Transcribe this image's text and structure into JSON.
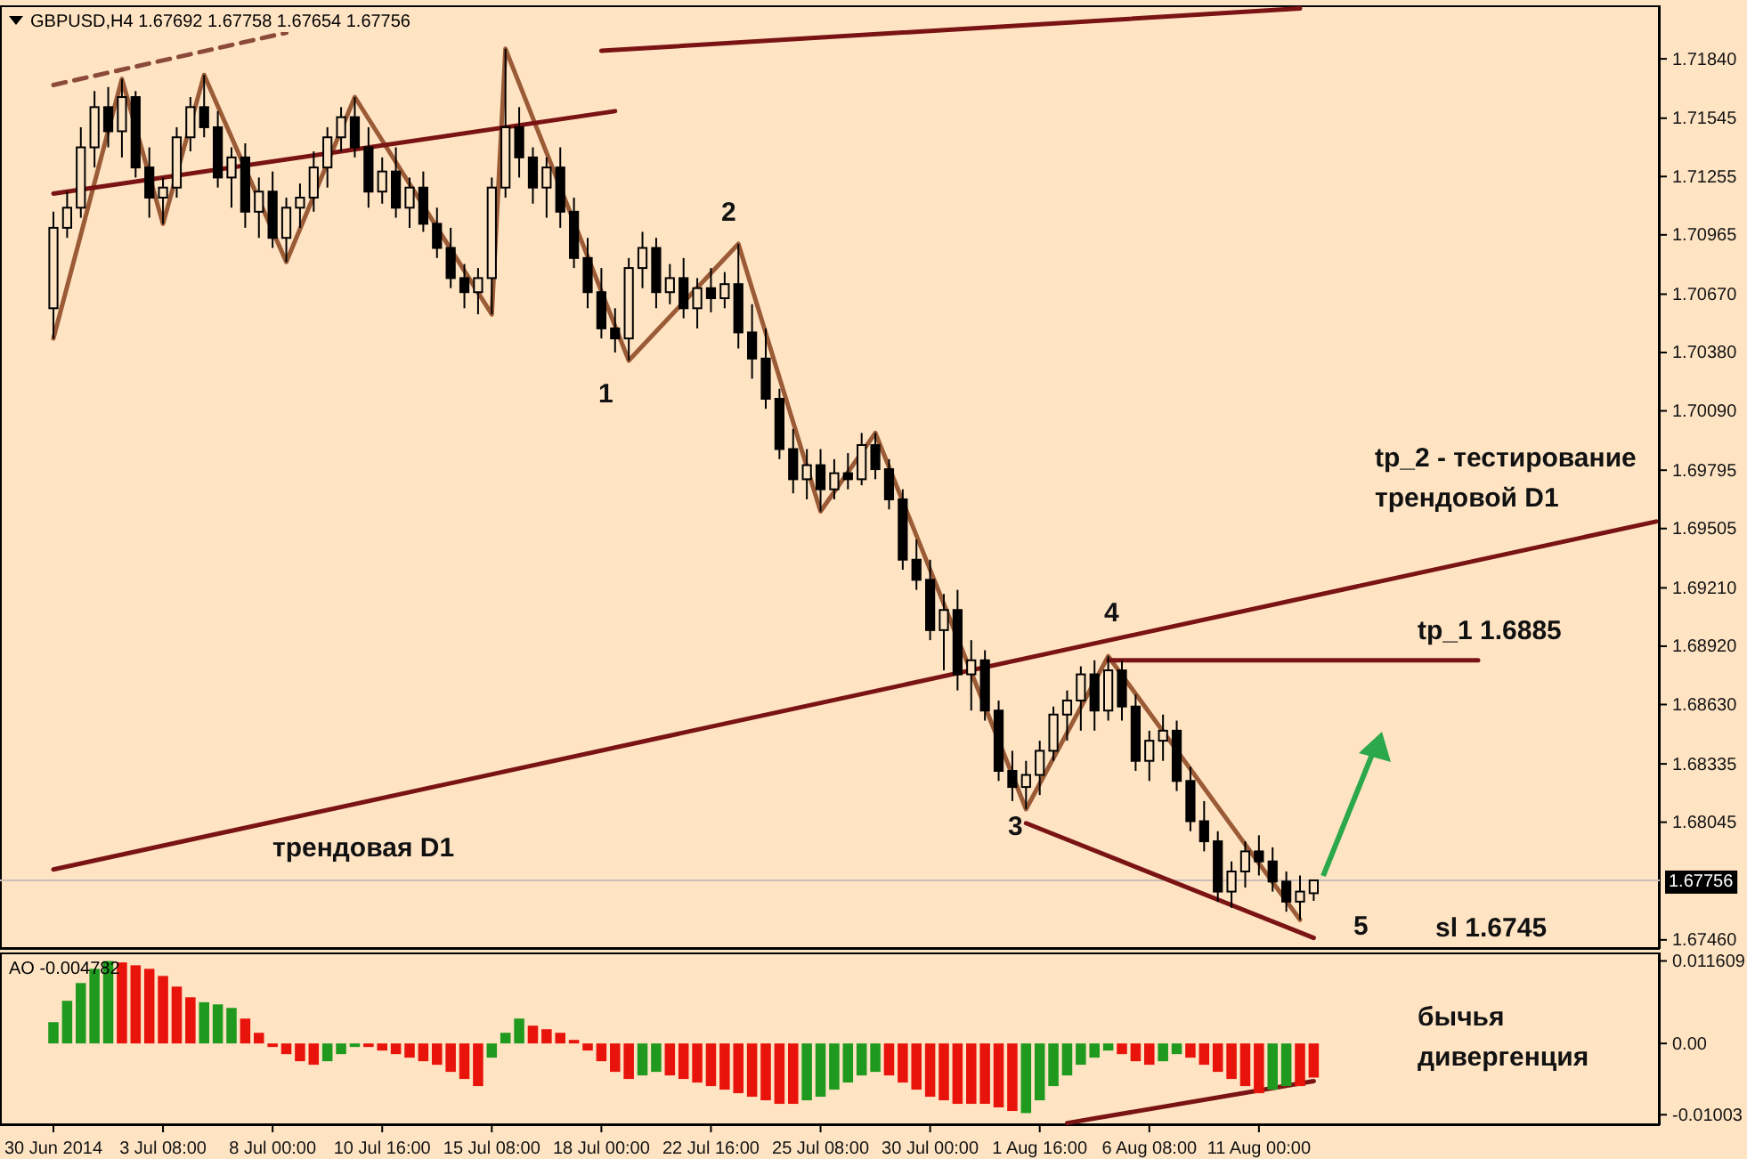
{
  "chart_data": [
    {
      "type": "candlestick",
      "title": "GBPUSD,H4 1.67692 1.67758 1.67654 1.67756",
      "categories": [
        null,
        null,
        null,
        null,
        null,
        null,
        null,
        null,
        null,
        null,
        null,
        null,
        null,
        null,
        null,
        null,
        null,
        null,
        null,
        null,
        null,
        null,
        null,
        null,
        null,
        null,
        null,
        null,
        null,
        null,
        null,
        null,
        null,
        null,
        null,
        null,
        null,
        null,
        null,
        null,
        null,
        null,
        null,
        null,
        null,
        null,
        null,
        null,
        null,
        null,
        null,
        null,
        null,
        null,
        null,
        null,
        null,
        null,
        null,
        null,
        null,
        null,
        null,
        null,
        null,
        null,
        null,
        null,
        null,
        null,
        null,
        null,
        null,
        null,
        null,
        null,
        null,
        null,
        null,
        null,
        null,
        null,
        null,
        null,
        null,
        null,
        null,
        null,
        null,
        null,
        null,
        null,
        null,
        null,
        null,
        null,
        null,
        null,
        null,
        null,
        null,
        null,
        null,
        null,
        null,
        null,
        null,
        null,
        null,
        null,
        null,
        null,
        null,
        null,
        null,
        null,
        null,
        null
      ],
      "ohlc": [
        [
          1.706,
          1.7108,
          1.7045,
          1.71
        ],
        [
          1.71,
          1.7118,
          1.7095,
          1.711
        ],
        [
          1.711,
          1.715,
          1.7105,
          1.714
        ],
        [
          1.714,
          1.7168,
          1.713,
          1.716
        ],
        [
          1.716,
          1.717,
          1.714,
          1.7148
        ],
        [
          1.7148,
          1.7174,
          1.7135,
          1.7165
        ],
        [
          1.7165,
          1.7168,
          1.7125,
          1.713
        ],
        [
          1.713,
          1.714,
          1.7105,
          1.7115
        ],
        [
          1.7115,
          1.7125,
          1.7102,
          1.712
        ],
        [
          1.712,
          1.715,
          1.7115,
          1.7145
        ],
        [
          1.7145,
          1.7165,
          1.7138,
          1.716
        ],
        [
          1.716,
          1.7176,
          1.7145,
          1.715
        ],
        [
          1.715,
          1.7158,
          1.712,
          1.7125
        ],
        [
          1.7125,
          1.714,
          1.711,
          1.7135
        ],
        [
          1.7135,
          1.7142,
          1.71,
          1.7108
        ],
        [
          1.7108,
          1.7125,
          1.7095,
          1.7118
        ],
        [
          1.7118,
          1.7128,
          1.709,
          1.7095
        ],
        [
          1.7095,
          1.7115,
          1.7083,
          1.711
        ],
        [
          1.711,
          1.7122,
          1.71,
          1.7115
        ],
        [
          1.7115,
          1.7138,
          1.7108,
          1.713
        ],
        [
          1.713,
          1.715,
          1.712,
          1.7145
        ],
        [
          1.7145,
          1.716,
          1.7138,
          1.7155
        ],
        [
          1.7155,
          1.7165,
          1.7135,
          1.714
        ],
        [
          1.714,
          1.715,
          1.711,
          1.7118
        ],
        [
          1.7118,
          1.7135,
          1.7112,
          1.7128
        ],
        [
          1.7128,
          1.714,
          1.7105,
          1.711
        ],
        [
          1.711,
          1.7125,
          1.71,
          1.712
        ],
        [
          1.712,
          1.7128,
          1.7098,
          1.7102
        ],
        [
          1.7102,
          1.711,
          1.7085,
          1.709
        ],
        [
          1.709,
          1.71,
          1.707,
          1.7075
        ],
        [
          1.7075,
          1.7082,
          1.706,
          1.7068
        ],
        [
          1.7068,
          1.708,
          1.7057,
          1.7075
        ],
        [
          1.7075,
          1.7125,
          1.7057,
          1.712
        ],
        [
          1.712,
          1.7189,
          1.7115,
          1.715
        ],
        [
          1.715,
          1.716,
          1.7125,
          1.7135
        ],
        [
          1.7135,
          1.714,
          1.7112,
          1.712
        ],
        [
          1.712,
          1.7135,
          1.7105,
          1.713
        ],
        [
          1.713,
          1.714,
          1.71,
          1.7108
        ],
        [
          1.7108,
          1.7115,
          1.708,
          1.7085
        ],
        [
          1.7085,
          1.7095,
          1.706,
          1.7068
        ],
        [
          1.7068,
          1.708,
          1.7045,
          1.705
        ],
        [
          1.705,
          1.706,
          1.7038,
          1.7045
        ],
        [
          1.7045,
          1.7085,
          1.7034,
          1.708
        ],
        [
          1.708,
          1.7098,
          1.707,
          1.709
        ],
        [
          1.709,
          1.7095,
          1.706,
          1.7068
        ],
        [
          1.7068,
          1.7082,
          1.7062,
          1.7075
        ],
        [
          1.7075,
          1.7085,
          1.7055,
          1.706
        ],
        [
          1.706,
          1.7075,
          1.705,
          1.707
        ],
        [
          1.707,
          1.708,
          1.7058,
          1.7065
        ],
        [
          1.7065,
          1.7078,
          1.706,
          1.7072
        ],
        [
          1.7072,
          1.7092,
          1.704,
          1.7048
        ],
        [
          1.7048,
          1.7062,
          1.7025,
          1.7035
        ],
        [
          1.7035,
          1.705,
          1.701,
          1.7015
        ],
        [
          1.7015,
          1.702,
          1.6985,
          1.699
        ],
        [
          1.699,
          1.7,
          1.6968,
          1.6975
        ],
        [
          1.6975,
          1.699,
          1.6965,
          1.6982
        ],
        [
          1.6982,
          1.699,
          1.6959,
          1.697
        ],
        [
          1.697,
          1.6985,
          1.6965,
          1.6978
        ],
        [
          1.6978,
          1.6988,
          1.697,
          1.6975
        ],
        [
          1.6975,
          1.6998,
          1.6972,
          1.6992
        ],
        [
          1.6992,
          1.6998,
          1.6975,
          1.698
        ],
        [
          1.698,
          1.6985,
          1.696,
          1.6965
        ],
        [
          1.6965,
          1.697,
          1.693,
          1.6935
        ],
        [
          1.6935,
          1.6945,
          1.692,
          1.6925
        ],
        [
          1.6925,
          1.6935,
          1.6895,
          1.69
        ],
        [
          1.69,
          1.6918,
          1.688,
          1.691
        ],
        [
          1.691,
          1.692,
          1.687,
          1.6878
        ],
        [
          1.6878,
          1.6895,
          1.686,
          1.6885
        ],
        [
          1.6885,
          1.689,
          1.6855,
          1.686
        ],
        [
          1.686,
          1.6865,
          1.6825,
          1.683
        ],
        [
          1.683,
          1.684,
          1.6815,
          1.6822
        ],
        [
          1.6822,
          1.6835,
          1.6811,
          1.6828
        ],
        [
          1.6828,
          1.6845,
          1.6818,
          1.684
        ],
        [
          1.684,
          1.6862,
          1.6835,
          1.6858
        ],
        [
          1.6858,
          1.687,
          1.6845,
          1.6865
        ],
        [
          1.6865,
          1.6882,
          1.685,
          1.6878
        ],
        [
          1.6878,
          1.6885,
          1.685,
          1.686
        ],
        [
          1.686,
          1.6887,
          1.6855,
          1.688
        ],
        [
          1.688,
          1.6885,
          1.6855,
          1.6862
        ],
        [
          1.6862,
          1.6868,
          1.683,
          1.6835
        ],
        [
          1.6835,
          1.685,
          1.6825,
          1.6845
        ],
        [
          1.6845,
          1.6858,
          1.6835,
          1.685
        ],
        [
          1.685,
          1.6855,
          1.682,
          1.6825
        ],
        [
          1.6825,
          1.6832,
          1.68,
          1.6805
        ],
        [
          1.6805,
          1.6815,
          1.679,
          1.6795
        ],
        [
          1.6795,
          1.68,
          1.6765,
          1.677
        ],
        [
          1.677,
          1.6785,
          1.6762,
          1.678
        ],
        [
          1.678,
          1.6795,
          1.6772,
          1.679
        ],
        [
          1.679,
          1.6798,
          1.6778,
          1.6785
        ],
        [
          1.6785,
          1.6792,
          1.677,
          1.6775
        ],
        [
          1.6775,
          1.678,
          1.676,
          1.6765
        ],
        [
          1.6765,
          1.6778,
          1.6756,
          1.677
        ],
        [
          1.67692,
          1.67758,
          1.67654,
          1.67756
        ],
        null,
        null,
        null,
        null,
        null,
        null,
        null,
        null,
        null,
        null,
        null,
        null,
        null,
        null,
        null,
        null,
        null,
        null,
        null,
        null,
        null,
        null,
        null,
        null,
        null
      ],
      "series": [
        {
          "type": "line",
          "color": "#9a5b36",
          "values": [
            1.7045,
            null,
            null,
            null,
            null,
            1.7174,
            null,
            null,
            1.7102,
            null,
            null,
            1.7176,
            null,
            null,
            null,
            null,
            null,
            1.7083,
            null,
            null,
            null,
            null,
            1.7165,
            null,
            null,
            null,
            null,
            null,
            null,
            null,
            null,
            null,
            1.7057,
            1.7189,
            null,
            null,
            null,
            null,
            null,
            null,
            null,
            null,
            1.7034,
            null,
            null,
            null,
            null,
            null,
            null,
            null,
            1.7092,
            null,
            null,
            null,
            null,
            null,
            1.6959,
            null,
            null,
            null,
            1.6998,
            null,
            null,
            null,
            null,
            null,
            null,
            null,
            null,
            null,
            null,
            1.6811,
            null,
            null,
            null,
            null,
            null,
            1.6887,
            null,
            null,
            null,
            null,
            null,
            null,
            null,
            null,
            null,
            null,
            null,
            null,
            null,
            1.6756,
            null,
            null,
            null,
            null,
            null,
            null,
            null,
            null,
            null,
            null,
            null,
            null,
            null,
            null,
            null,
            null,
            null,
            null,
            null,
            null,
            null,
            null,
            null,
            null,
            null,
            null
          ]
        },
        {
          "type": "line",
          "color": "#8b4a3a",
          "line_style": "dashed",
          "values": [
            1.7171,
            null,
            null,
            null,
            null,
            null,
            null,
            null,
            null,
            null,
            null,
            null,
            null,
            null,
            null,
            null,
            null,
            1.7197,
            null,
            null,
            null,
            null,
            null,
            null,
            null,
            null,
            null,
            null,
            null,
            null,
            null,
            null,
            null,
            null,
            null,
            null,
            null,
            null,
            null,
            null,
            null,
            null,
            null,
            null,
            null,
            null,
            null,
            null,
            null,
            null,
            null,
            null,
            null,
            null,
            null,
            null,
            null,
            null,
            null,
            null,
            null,
            null,
            null,
            null,
            null,
            null,
            null,
            null,
            null,
            null,
            null,
            null,
            null,
            null,
            null,
            null,
            null,
            null,
            null,
            null,
            null,
            null,
            null,
            null,
            null,
            null,
            null,
            null,
            null,
            null,
            null,
            null,
            null,
            null,
            null,
            null,
            null,
            null,
            null,
            null,
            null,
            null,
            null,
            null,
            null,
            null,
            null,
            null,
            null,
            null,
            null,
            null,
            null,
            null,
            null,
            null,
            null,
            null
          ]
        },
        {
          "type": "line",
          "color": "#7a1414",
          "values": [
            null,
            null,
            null,
            null,
            null,
            null,
            null,
            null,
            null,
            null,
            null,
            null,
            null,
            null,
            null,
            null,
            null,
            null,
            null,
            null,
            null,
            null,
            null,
            null,
            null,
            null,
            null,
            null,
            null,
            null,
            null,
            null,
            null,
            null,
            null,
            null,
            null,
            null,
            null,
            null,
            1.7188,
            null,
            null,
            null,
            null,
            null,
            null,
            null,
            null,
            null,
            null,
            null,
            null,
            null,
            null,
            null,
            null,
            null,
            null,
            null,
            null,
            null,
            null,
            null,
            null,
            null,
            null,
            null,
            null,
            null,
            null,
            null,
            null,
            null,
            null,
            null,
            null,
            null,
            null,
            null,
            null,
            null,
            null,
            null,
            null,
            null,
            null,
            null,
            null,
            null,
            null,
            1.7209,
            null,
            null,
            null,
            null,
            null,
            null,
            null,
            null,
            null,
            null,
            null,
            null,
            null,
            null,
            null,
            null,
            null,
            null,
            null,
            null,
            null,
            null,
            null,
            null,
            null,
            null
          ]
        },
        {
          "type": "line",
          "color": "#7a1414",
          "values": [
            1.7117,
            null,
            null,
            null,
            null,
            null,
            null,
            null,
            null,
            null,
            null,
            null,
            null,
            null,
            null,
            null,
            null,
            null,
            null,
            null,
            null,
            null,
            null,
            null,
            null,
            null,
            null,
            null,
            null,
            null,
            null,
            null,
            null,
            null,
            null,
            null,
            null,
            null,
            null,
            null,
            null,
            1.7158,
            null,
            null,
            null,
            null,
            null,
            null,
            null,
            null,
            null,
            null,
            null,
            null,
            null,
            null,
            null,
            null,
            null,
            null,
            null,
            null,
            null,
            null,
            null,
            null,
            null,
            null,
            null,
            null,
            null,
            null,
            null,
            null,
            null,
            null,
            null,
            null,
            null,
            null,
            null,
            null,
            null,
            null,
            null,
            null,
            null,
            null,
            null,
            null,
            null,
            null,
            null,
            null,
            null,
            null,
            null,
            null,
            null,
            null,
            null,
            null,
            null,
            null,
            null,
            null,
            null,
            null,
            null,
            null,
            null,
            null,
            null,
            null,
            null,
            null,
            null,
            null
          ]
        },
        {
          "type": "line",
          "color": "#7a1414",
          "values": [
            1.6781,
            null,
            null,
            null,
            null,
            null,
            null,
            null,
            null,
            null,
            null,
            null,
            null,
            null,
            null,
            null,
            null,
            null,
            null,
            null,
            null,
            null,
            null,
            null,
            null,
            null,
            null,
            null,
            null,
            null,
            null,
            null,
            null,
            null,
            null,
            null,
            null,
            null,
            null,
            null,
            null,
            null,
            null,
            null,
            null,
            null,
            null,
            null,
            null,
            null,
            null,
            null,
            null,
            null,
            null,
            null,
            null,
            null,
            null,
            null,
            null,
            null,
            null,
            null,
            null,
            null,
            null,
            null,
            null,
            null,
            null,
            null,
            null,
            null,
            null,
            null,
            null,
            null,
            null,
            null,
            null,
            null,
            null,
            null,
            null,
            null,
            null,
            null,
            null,
            null,
            null,
            null,
            null,
            null,
            null,
            null,
            null,
            null,
            null,
            null,
            null,
            null,
            null,
            null,
            null,
            null,
            null,
            null,
            null,
            null,
            null,
            null,
            null,
            null,
            null,
            null,
            null,
            1.6954
          ]
        },
        {
          "type": "line",
          "color": "#7a1414",
          "values": [
            null,
            null,
            null,
            null,
            null,
            null,
            null,
            null,
            null,
            null,
            null,
            null,
            null,
            null,
            null,
            null,
            null,
            null,
            null,
            null,
            null,
            null,
            null,
            null,
            null,
            null,
            null,
            null,
            null,
            null,
            null,
            null,
            null,
            null,
            null,
            null,
            null,
            null,
            null,
            null,
            null,
            null,
            null,
            null,
            null,
            null,
            null,
            null,
            null,
            null,
            null,
            null,
            null,
            null,
            null,
            null,
            null,
            null,
            null,
            null,
            null,
            null,
            null,
            null,
            null,
            null,
            null,
            null,
            null,
            null,
            null,
            null,
            null,
            null,
            null,
            null,
            null,
            1.6885,
            null,
            null,
            null,
            null,
            null,
            null,
            null,
            null,
            null,
            null,
            null,
            null,
            null,
            null,
            null,
            null,
            null,
            null,
            null,
            null,
            null,
            null,
            null,
            null,
            null,
            null,
            1.6885,
            null,
            null,
            null,
            null,
            null,
            null,
            null,
            null,
            null,
            null,
            null,
            null,
            null
          ]
        },
        {
          "type": "line",
          "color": "#7a1414",
          "values": [
            null,
            null,
            null,
            null,
            null,
            null,
            null,
            null,
            null,
            null,
            null,
            null,
            null,
            null,
            null,
            null,
            null,
            null,
            null,
            null,
            null,
            null,
            null,
            null,
            null,
            null,
            null,
            null,
            null,
            null,
            null,
            null,
            null,
            null,
            null,
            null,
            null,
            null,
            null,
            null,
            null,
            null,
            null,
            null,
            null,
            null,
            null,
            null,
            null,
            null,
            null,
            null,
            null,
            null,
            null,
            null,
            null,
            null,
            null,
            null,
            null,
            null,
            null,
            null,
            null,
            null,
            null,
            null,
            null,
            null,
            null,
            1.6804,
            null,
            null,
            null,
            null,
            null,
            null,
            null,
            null,
            null,
            null,
            null,
            null,
            null,
            null,
            null,
            null,
            null,
            null,
            null,
            null,
            1.6747,
            null,
            null,
            null,
            null,
            null,
            null,
            null,
            null,
            null,
            null,
            null,
            null,
            null,
            null,
            null,
            null,
            null,
            null,
            null,
            null,
            null,
            null,
            null,
            null,
            null
          ]
        }
      ],
      "ylim": [
        1.67415,
        1.72106
      ],
      "yticks": [
        {
          "value": 1.7184,
          "label": "1.71840"
        },
        1.71545,
        1.71255,
        1.70965,
        {
          "value": 1.7067,
          "label": "1.70670"
        },
        {
          "value": 1.7038,
          "label": "1.70380"
        },
        {
          "value": 1.7009,
          "label": "1.70090"
        },
        1.69795,
        1.69505,
        {
          "value": 1.6921,
          "label": "1.69210"
        },
        {
          "value": 1.6892,
          "label": "1.68920"
        },
        {
          "value": 1.6863,
          "label": "1.68630"
        },
        1.68335,
        1.68045,
        {
          "value": 1.6746,
          "label": "1.67460"
        }
      ],
      "ref_lines": [
        {
          "axis": "y",
          "value": 1.67756,
          "label": "1.67756",
          "color": "#c8c0b8"
        }
      ],
      "annotations": [
        "1",
        "2",
        "3",
        "4",
        "5",
        "tp_2 - тестирование трендовой D1",
        "tp_1 1.6885",
        "sl 1.6745",
        "трендовая D1"
      ]
    },
    {
      "type": "bar",
      "title": "AO -0.004782",
      "categories": [
        "30 Jun 2014",
        null,
        null,
        null,
        null,
        null,
        null,
        null,
        "3 Jul 08:00",
        null,
        null,
        null,
        null,
        null,
        null,
        null,
        "8 Jul 00:00",
        null,
        null,
        null,
        null,
        null,
        null,
        null,
        "10 Jul 16:00",
        null,
        null,
        null,
        null,
        null,
        null,
        null,
        "15 Jul 08:00",
        null,
        null,
        null,
        null,
        null,
        null,
        null,
        "18 Jul 00:00",
        null,
        null,
        null,
        null,
        null,
        null,
        null,
        "22 Jul 16:00",
        null,
        null,
        null,
        null,
        null,
        null,
        null,
        "25 Jul 08:00",
        null,
        null,
        null,
        null,
        null,
        null,
        null,
        "30 Jul 00:00",
        null,
        null,
        null,
        null,
        null,
        null,
        null,
        "1 Aug 16:00",
        null,
        null,
        null,
        null,
        null,
        null,
        null,
        "6 Aug 08:00",
        null,
        null,
        null,
        null,
        null,
        null,
        null,
        "11 Aug 00:00",
        null,
        null,
        null,
        null,
        null,
        null,
        null,
        null,
        null,
        null,
        null,
        null,
        null,
        null,
        null,
        null,
        null,
        null,
        null,
        null,
        null,
        null,
        null,
        null,
        null,
        null,
        null,
        null,
        null
      ],
      "series": [
        {
          "type": "bar",
          "values": [
            0.003,
            0.006,
            0.0085,
            0.0105,
            0.0116,
            0.0114,
            0.011,
            0.0105,
            0.0095,
            0.008,
            0.0065,
            0.0058,
            0.0055,
            0.005,
            0.0035,
            0.0015,
            -0.0005,
            -0.0015,
            -0.0025,
            -0.003,
            -0.0025,
            -0.0015,
            -0.0005,
            -0.0005,
            -0.001,
            -0.0015,
            -0.002,
            -0.0025,
            -0.003,
            -0.004,
            -0.005,
            -0.006,
            -0.002,
            0.0015,
            0.0035,
            0.0025,
            0.002,
            0.0015,
            0.0005,
            -0.001,
            -0.0025,
            -0.004,
            -0.005,
            -0.0045,
            -0.004,
            -0.0045,
            -0.005,
            -0.0055,
            -0.006,
            -0.0065,
            -0.007,
            -0.0075,
            -0.008,
            -0.0085,
            -0.0085,
            -0.008,
            -0.0075,
            -0.0065,
            -0.0055,
            -0.0045,
            -0.004,
            -0.0045,
            -0.0055,
            -0.0065,
            -0.0075,
            -0.008,
            -0.0085,
            -0.0085,
            -0.0085,
            -0.009,
            -0.0095,
            -0.0098,
            -0.008,
            -0.006,
            -0.0045,
            -0.003,
            -0.002,
            -0.001,
            -0.0015,
            -0.0025,
            -0.003,
            -0.0025,
            -0.0015,
            -0.002,
            -0.003,
            -0.004,
            -0.005,
            -0.006,
            -0.007,
            -0.0065,
            -0.006,
            -0.006,
            -0.0048,
            null,
            null,
            null,
            null,
            null,
            null,
            null,
            null,
            null,
            null,
            null,
            null,
            null,
            null,
            null,
            null,
            null,
            null,
            null,
            null,
            null,
            null,
            null,
            null,
            null
          ],
          "colors": [
            "#1f9a1f",
            "#1f9a1f",
            "#1f9a1f",
            "#1f9a1f",
            "#1f9a1f",
            "#e8140c",
            "#e8140c",
            "#e8140c",
            "#e8140c",
            "#e8140c",
            "#e8140c",
            "#1f9a1f",
            "#1f9a1f",
            "#1f9a1f",
            "#e8140c",
            "#e8140c",
            "#e8140c",
            "#e8140c",
            "#e8140c",
            "#e8140c",
            "#1f9a1f",
            "#1f9a1f",
            "#1f9a1f",
            "#e8140c",
            "#e8140c",
            "#e8140c",
            "#e8140c",
            "#e8140c",
            "#e8140c",
            "#e8140c",
            "#e8140c",
            "#e8140c",
            "#1f9a1f",
            "#1f9a1f",
            "#1f9a1f",
            "#e8140c",
            "#e8140c",
            "#e8140c",
            "#e8140c",
            "#e8140c",
            "#e8140c",
            "#e8140c",
            "#e8140c",
            "#1f9a1f",
            "#1f9a1f",
            "#e8140c",
            "#e8140c",
            "#e8140c",
            "#e8140c",
            "#e8140c",
            "#e8140c",
            "#e8140c",
            "#e8140c",
            "#e8140c",
            "#e8140c",
            "#1f9a1f",
            "#1f9a1f",
            "#1f9a1f",
            "#1f9a1f",
            "#1f9a1f",
            "#1f9a1f",
            "#e8140c",
            "#e8140c",
            "#e8140c",
            "#e8140c",
            "#e8140c",
            "#e8140c",
            "#e8140c",
            "#e8140c",
            "#e8140c",
            "#e8140c",
            "#1f9a1f",
            "#1f9a1f",
            "#1f9a1f",
            "#1f9a1f",
            "#1f9a1f",
            "#1f9a1f",
            "#1f9a1f",
            "#e8140c",
            "#e8140c",
            "#e8140c",
            "#1f9a1f",
            "#1f9a1f",
            "#e8140c",
            "#e8140c",
            "#e8140c",
            "#e8140c",
            "#e8140c",
            "#e8140c",
            "#1f9a1f",
            "#1f9a1f",
            "#e8140c",
            "#e8140c",
            null,
            null,
            null,
            null,
            null,
            null,
            null,
            null,
            null,
            null,
            null,
            null,
            null,
            null,
            null,
            null,
            null,
            null,
            null,
            null,
            null,
            null,
            null,
            null,
            null
          ]
        },
        {
          "type": "line",
          "color": "#7a1414",
          "values": [
            null,
            null,
            null,
            null,
            null,
            null,
            null,
            null,
            null,
            null,
            null,
            null,
            null,
            null,
            null,
            null,
            null,
            null,
            null,
            null,
            null,
            null,
            null,
            null,
            null,
            null,
            null,
            null,
            null,
            null,
            null,
            null,
            null,
            null,
            null,
            null,
            null,
            null,
            null,
            null,
            null,
            null,
            null,
            null,
            null,
            null,
            null,
            null,
            null,
            null,
            null,
            null,
            null,
            null,
            null,
            null,
            null,
            null,
            null,
            null,
            null,
            null,
            null,
            null,
            null,
            null,
            null,
            null,
            null,
            null,
            null,
            null,
            null,
            null,
            -0.0112,
            null,
            null,
            null,
            null,
            null,
            null,
            null,
            null,
            null,
            null,
            null,
            null,
            null,
            null,
            null,
            null,
            null,
            -0.0053,
            null,
            null,
            null,
            null,
            null,
            null,
            null,
            null,
            null,
            null,
            null,
            null,
            null,
            null,
            null,
            null,
            null,
            null,
            null,
            null,
            null,
            null,
            null,
            null,
            null
          ]
        }
      ],
      "ylim": [
        -0.0115,
        0.0128
      ],
      "yticks": [
        0.011609,
        {
          "value": 0,
          "label": "0.00"
        },
        -0.01003
      ],
      "annotations": [
        "бычья дивергенция"
      ]
    }
  ]
}
